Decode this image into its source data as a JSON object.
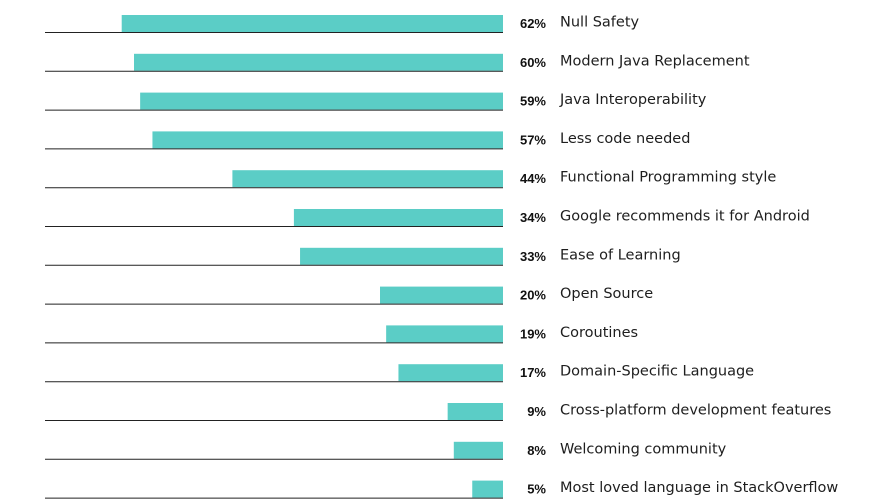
{
  "chart_data": {
    "type": "bar",
    "orientation": "horizontal",
    "bar_direction": "right-to-left",
    "value_unit": "%",
    "categories": [
      "Null Safety",
      "Modern Java Replacement",
      "Java Interoperability",
      "Less code needed",
      "Functional Programming style",
      "Google recommends it for Android",
      "Ease of Learning",
      "Open Source",
      "Coroutines",
      "Domain-Specific Language",
      "Cross-platform development features",
      "Welcoming community",
      "Most loved language in StackOverflow"
    ],
    "values": [
      62,
      60,
      59,
      57,
      44,
      34,
      33,
      20,
      19,
      17,
      9,
      8,
      5
    ],
    "value_labels": [
      "62%",
      "60%",
      "59%",
      "57%",
      "44%",
      "34%",
      "33%",
      "20%",
      "19%",
      "17%",
      "9%",
      "8%",
      "5%"
    ],
    "xlim": [
      0,
      67
    ],
    "bar_color": "#5bcdc6",
    "baseline_color": "#222222",
    "grid": false,
    "legend": "none"
  }
}
